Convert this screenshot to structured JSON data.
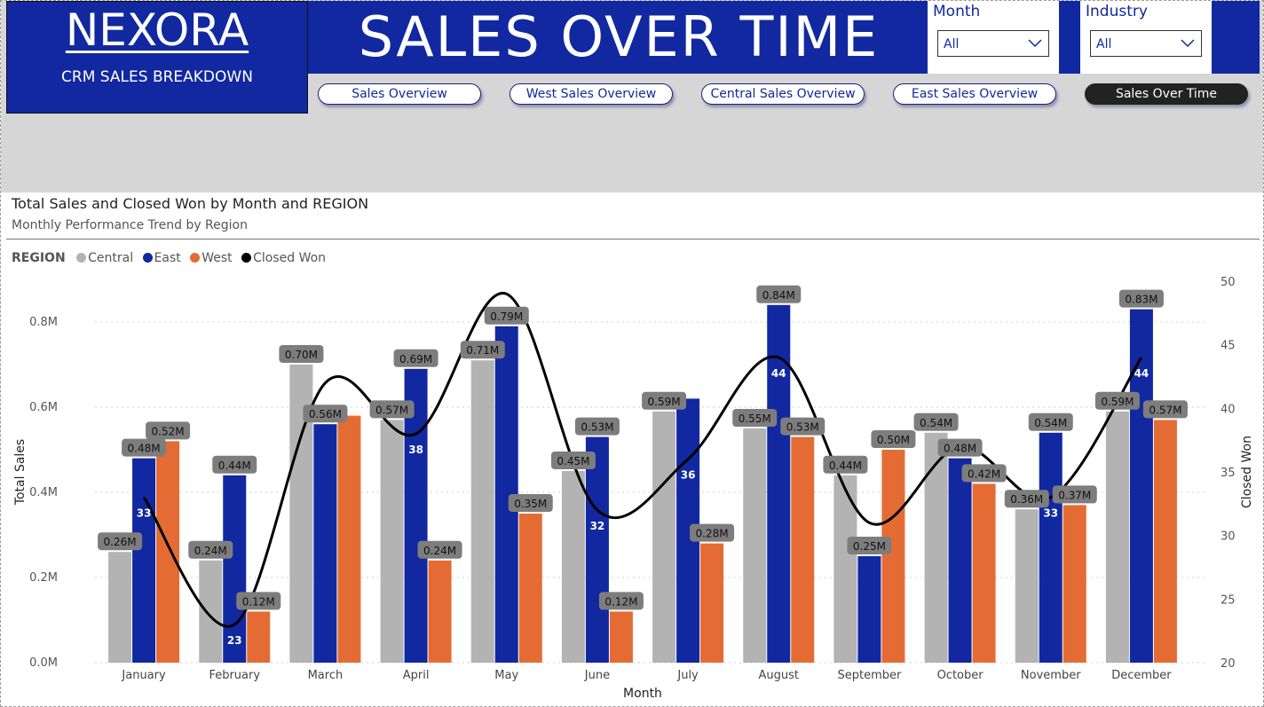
{
  "logo": {
    "text": "NEXORA",
    "subtitle": "CRM SALES BREAKDOWN"
  },
  "page_title": "SALES OVER TIME",
  "slicers": [
    {
      "label": "Month",
      "value": "All"
    },
    {
      "label": "Industry",
      "value": "All"
    }
  ],
  "nav": [
    {
      "label": "Sales Overview",
      "active": false
    },
    {
      "label": "West Sales Overview",
      "active": false
    },
    {
      "label": "Central Sales Overview",
      "active": false
    },
    {
      "label": "East Sales Overview",
      "active": false
    },
    {
      "label": "Sales Over Time",
      "active": true
    }
  ],
  "chart": {
    "title": "Total Sales and Closed Won by Month and REGION",
    "subtitle": "Monthly Performance Trend by Region",
    "legend_title": "REGION",
    "legend": [
      {
        "name": "Central",
        "color": "#b3b3b3"
      },
      {
        "name": "East",
        "color": "#1128a0"
      },
      {
        "name": "West",
        "color": "#e46c34"
      },
      {
        "name": "Closed Won",
        "color": "#000000"
      }
    ]
  },
  "chart_data": {
    "type": "bar",
    "categories": [
      "January",
      "February",
      "March",
      "April",
      "May",
      "June",
      "July",
      "August",
      "September",
      "October",
      "November",
      "December"
    ],
    "series": [
      {
        "name": "Central",
        "color": "#b3b3b3",
        "values": [
          0.26,
          0.24,
          0.7,
          0.57,
          0.71,
          0.45,
          0.59,
          0.55,
          0.44,
          0.54,
          0.36,
          0.59
        ],
        "labels": [
          "0.26M",
          "0.24M",
          "0.70M",
          "0.57M",
          "0.71M",
          "0.45M",
          "0.59M",
          "0.55M",
          "0.44M",
          "0.54M",
          "0.36M",
          "0.59M"
        ]
      },
      {
        "name": "East",
        "color": "#1128a0",
        "values": [
          0.48,
          0.44,
          0.56,
          0.69,
          0.79,
          0.53,
          0.62,
          0.84,
          0.25,
          0.48,
          0.54,
          0.83
        ],
        "labels": [
          "0.48M",
          "0.44M",
          "0.56M",
          "0.69M",
          "0.79M",
          "0.53M",
          "",
          "0.84M",
          "0.25M",
          "0.48M",
          "0.54M",
          "0.83M"
        ]
      },
      {
        "name": "West",
        "color": "#e46c34",
        "values": [
          0.52,
          0.12,
          0.58,
          0.24,
          0.35,
          0.12,
          0.28,
          0.53,
          0.5,
          0.42,
          0.37,
          0.57
        ],
        "labels": [
          "0.52M",
          "0.12M",
          "",
          "0.24M",
          "0.35M",
          "0.12M",
          "0.28M",
          "0.53M",
          "0.50M",
          "0.42M",
          "0.37M",
          "0.57M"
        ]
      }
    ],
    "line": {
      "name": "Closed Won",
      "color": "#000000",
      "values": [
        33,
        23,
        42,
        38,
        49,
        32,
        36,
        44,
        31,
        37,
        33,
        44
      ],
      "labels": [
        "33",
        "23",
        "",
        "38",
        "",
        "32",
        "36",
        "44",
        "",
        "",
        "33",
        "44"
      ]
    },
    "xlabel": "Month",
    "ylabel": "Total Sales",
    "y2label": "Closed Won",
    "ylim": [
      0,
      0.9
    ],
    "yticks": [
      "0.0M",
      "0.2M",
      "0.4M",
      "0.6M",
      "0.8M"
    ],
    "y2lim": [
      20,
      50
    ],
    "y2ticks": [
      "20",
      "25",
      "30",
      "35",
      "40",
      "45",
      "50"
    ],
    "grid": true,
    "legend_position": "top-left"
  }
}
